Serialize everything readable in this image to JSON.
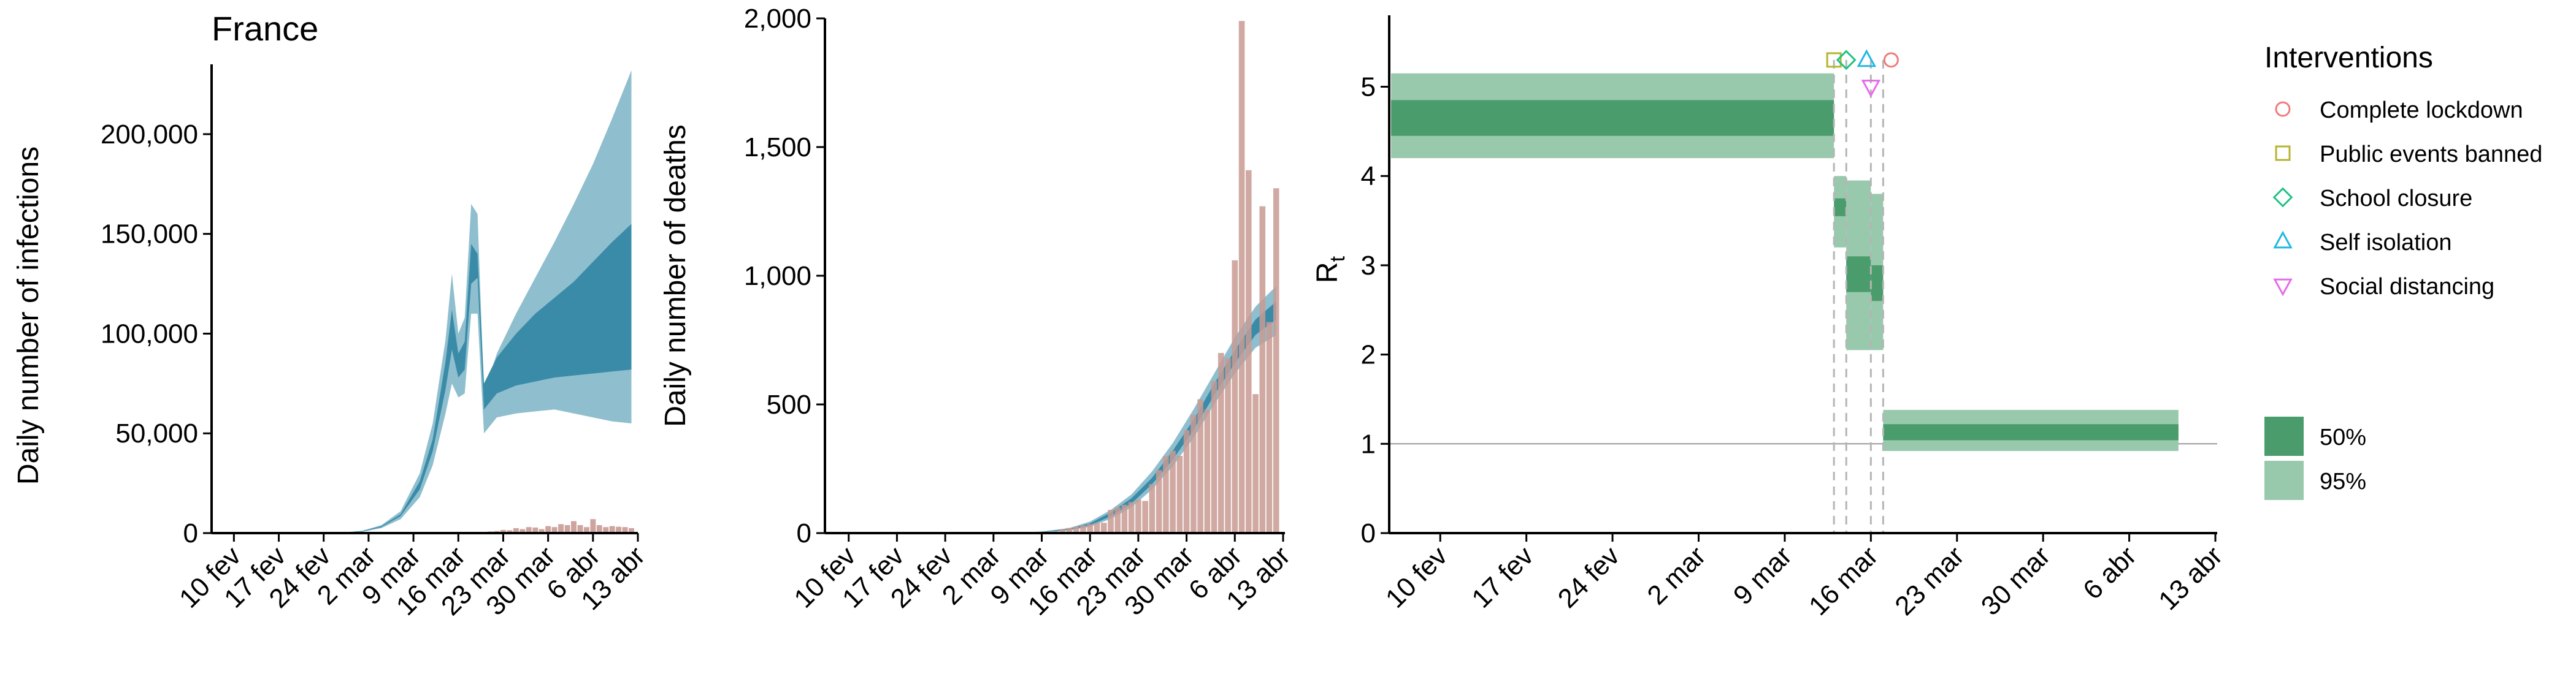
{
  "colors": {
    "infection_95": "#8fbfce",
    "infection_50": "#3a8ba8",
    "deaths_bars": "#c89a93",
    "rt_95": "#99c9ad",
    "rt_50": "#4a9c6c",
    "axis": "#000000",
    "threshold_line": "#999999",
    "intervention_guides": "#b5b5b5",
    "icon_lockdown": "#f07c7c",
    "icon_public_events": "#b5b531",
    "icon_school": "#1fc283",
    "icon_self_isolation": "#22b8e3",
    "icon_social_distancing": "#e46ce9"
  },
  "chart_data": [
    {
      "type": "area",
      "title": "France",
      "xlabel": "",
      "ylabel": "Daily number of infections",
      "ylim": [
        0,
        235000
      ],
      "x_ticks": [
        "10 fev",
        "17 fev",
        "24 fev",
        "2 mar",
        "9 mar",
        "16 mar",
        "23 mar",
        "30 mar",
        "6 abr",
        "13 abr"
      ],
      "y_ticks": [
        "0",
        "50,000",
        "100,000",
        "150,000",
        "200,000"
      ],
      "y_tick_values": [
        0,
        50000,
        100000,
        150000,
        200000
      ],
      "x_start": "2020-02-07",
      "x_end": "2020-04-13",
      "series": [
        {
          "x": [
            "2020-02-13",
            "2020-02-20",
            "2020-02-27",
            "2020-03-01",
            "2020-03-04",
            "2020-03-07",
            "2020-03-10",
            "2020-03-12",
            "2020-03-14",
            "2020-03-15",
            "2020-03-16",
            "2020-03-17",
            "2020-03-18",
            "2020-03-19",
            "2020-03-20",
            "2020-03-22",
            "2020-03-25",
            "2020-03-28",
            "2020-03-31",
            "2020-04-03",
            "2020-04-06",
            "2020-04-09",
            "2020-04-12"
          ],
          "lower95": [
            0,
            0,
            100,
            600,
            2500,
            7000,
            18000,
            34000,
            60000,
            75000,
            68000,
            70000,
            110000,
            110000,
            50000,
            58000,
            60000,
            61000,
            62000,
            60000,
            58000,
            56000,
            55000
          ],
          "upper95": [
            0,
            0,
            300,
            1200,
            4000,
            11000,
            30000,
            55000,
            97000,
            130000,
            100000,
            108000,
            165000,
            160000,
            70000,
            90000,
            110000,
            128000,
            146000,
            165000,
            185000,
            208000,
            232000
          ],
          "lower50": [
            0,
            0,
            150,
            800,
            3000,
            8500,
            22000,
            41000,
            72000,
            92000,
            78000,
            82000,
            125000,
            128000,
            62000,
            70000,
            74000,
            76000,
            78000,
            79000,
            80000,
            81000,
            82000
          ],
          "upper50": [
            0,
            0,
            250,
            1000,
            3500,
            9500,
            26000,
            47000,
            86000,
            112000,
            90000,
            96000,
            145000,
            140000,
            75000,
            88000,
            100000,
            110000,
            118000,
            126000,
            136000,
            146000,
            155000
          ]
        }
      ],
      "bars": {
        "x": [
          "2020-03-20",
          "2020-03-21",
          "2020-03-22",
          "2020-03-23",
          "2020-03-24",
          "2020-03-25",
          "2020-03-26",
          "2020-03-27",
          "2020-03-28",
          "2020-03-29",
          "2020-03-30",
          "2020-03-31",
          "2020-04-01",
          "2020-04-02",
          "2020-04-03",
          "2020-04-04",
          "2020-04-05",
          "2020-04-06",
          "2020-04-07",
          "2020-04-08",
          "2020-04-09",
          "2020-04-10",
          "2020-04-11",
          "2020-04-12"
        ],
        "values": [
          500,
          800,
          1000,
          1600,
          1400,
          2500,
          2000,
          3000,
          2800,
          2000,
          3500,
          3000,
          4500,
          4000,
          6000,
          4000,
          3000,
          7000,
          4000,
          3000,
          3500,
          3200,
          3000,
          2500
        ]
      }
    },
    {
      "type": "area",
      "title": "",
      "xlabel": "",
      "ylabel": "Daily number of deaths",
      "ylim": [
        0,
        2000
      ],
      "x_ticks": [
        "10 fev",
        "17 fev",
        "24 fev",
        "2 mar",
        "9 mar",
        "16 mar",
        "23 mar",
        "30 mar",
        "6 abr",
        "13 abr"
      ],
      "y_ticks": [
        "0",
        "500",
        "1,000",
        "1,500",
        "2,000"
      ],
      "y_tick_values": [
        0,
        500,
        1000,
        1500,
        2000
      ],
      "x_start": "2020-02-07",
      "x_end": "2020-04-13",
      "series": [
        {
          "x": [
            "2020-03-01",
            "2020-03-05",
            "2020-03-09",
            "2020-03-13",
            "2020-03-16",
            "2020-03-19",
            "2020-03-22",
            "2020-03-25",
            "2020-03-28",
            "2020-03-31",
            "2020-04-03",
            "2020-04-06",
            "2020-04-09",
            "2020-04-12"
          ],
          "lower95": [
            0,
            1,
            3,
            10,
            25,
            55,
            100,
            170,
            260,
            370,
            500,
            620,
            720,
            770
          ],
          "upper95": [
            0,
            2,
            6,
            20,
            45,
            90,
            150,
            240,
            350,
            480,
            620,
            760,
            880,
            960
          ],
          "lower50": [
            0,
            1,
            4,
            13,
            30,
            65,
            115,
            190,
            285,
            400,
            535,
            660,
            770,
            830
          ],
          "upper50": [
            0,
            2,
            5,
            17,
            38,
            80,
            135,
            215,
            320,
            440,
            580,
            710,
            830,
            900
          ]
        }
      ],
      "bars": {
        "x": [
          "2020-03-09",
          "2020-03-10",
          "2020-03-11",
          "2020-03-12",
          "2020-03-13",
          "2020-03-14",
          "2020-03-15",
          "2020-03-16",
          "2020-03-17",
          "2020-03-18",
          "2020-03-19",
          "2020-03-20",
          "2020-03-21",
          "2020-03-22",
          "2020-03-23",
          "2020-03-24",
          "2020-03-25",
          "2020-03-26",
          "2020-03-27",
          "2020-03-28",
          "2020-03-29",
          "2020-03-30",
          "2020-03-31",
          "2020-04-01",
          "2020-04-02",
          "2020-04-03",
          "2020-04-04",
          "2020-04-05",
          "2020-04-06",
          "2020-04-07",
          "2020-04-08",
          "2020-04-09",
          "2020-04-10",
          "2020-04-11",
          "2020-04-12"
        ],
        "values": [
          3,
          5,
          8,
          15,
          20,
          25,
          30,
          35,
          40,
          40,
          90,
          100,
          110,
          120,
          130,
          125,
          190,
          245,
          300,
          320,
          300,
          400,
          460,
          520,
          480,
          590,
          700,
          680,
          1060,
          1990,
          1410,
          540,
          1270,
          820,
          1340
        ]
      }
    },
    {
      "type": "area",
      "title": "",
      "xlabel": "",
      "ylabel": "R",
      "ylabel_subscript": "t",
      "ylim": [
        0,
        5.8
      ],
      "x_ticks": [
        "10 fev",
        "17 fev",
        "24 fev",
        "2 mar",
        "9 mar",
        "16 mar",
        "23 mar",
        "30 mar",
        "6 abr",
        "13 abr"
      ],
      "y_ticks": [
        "0",
        "1",
        "2",
        "3",
        "4",
        "5"
      ],
      "y_tick_values": [
        0,
        1,
        2,
        3,
        4,
        5
      ],
      "x_start": "2020-02-06",
      "x_end": "2020-04-13",
      "reference_line": 1,
      "segments": [
        {
          "start": "2020-02-06",
          "end": "2020-03-13",
          "lower95": 4.2,
          "upper95": 5.15,
          "lower50": 4.45,
          "upper50": 4.85
        },
        {
          "start": "2020-03-13",
          "end": "2020-03-14",
          "lower95": 3.2,
          "upper95": 4.0,
          "lower50": 3.55,
          "upper50": 3.75
        },
        {
          "start": "2020-03-14",
          "end": "2020-03-16",
          "lower95": 2.05,
          "upper95": 3.95,
          "lower50": 2.7,
          "upper50": 3.1
        },
        {
          "start": "2020-03-16",
          "end": "2020-03-17",
          "lower95": 2.05,
          "upper95": 3.8,
          "lower50": 2.6,
          "upper50": 3.0
        },
        {
          "start": "2020-03-17",
          "end": "2020-04-10",
          "lower95": 0.92,
          "upper95": 1.38,
          "lower50": 1.04,
          "upper50": 1.22
        }
      ],
      "interventions": [
        {
          "name": "Complete lockdown",
          "date": "2020-03-17",
          "y": 5.3,
          "shape": "circle"
        },
        {
          "name": "Public events banned",
          "date": "2020-03-13",
          "y": 5.3,
          "shape": "square"
        },
        {
          "name": "School closure",
          "date": "2020-03-14",
          "y": 5.3,
          "shape": "diamond"
        },
        {
          "name": "Self isolation",
          "date": "2020-03-16",
          "y": 5.3,
          "shape": "triangle-up"
        },
        {
          "name": "Social distancing",
          "date": "2020-03-16",
          "y": 5.0,
          "shape": "triangle-down"
        }
      ],
      "legend": {
        "title": "Interventions",
        "items": [
          "Complete lockdown",
          "Public events banned",
          "School closure",
          "Self isolation",
          "Social distancing"
        ],
        "band_labels": [
          "50%",
          "95%"
        ],
        "placement": "right"
      }
    }
  ]
}
